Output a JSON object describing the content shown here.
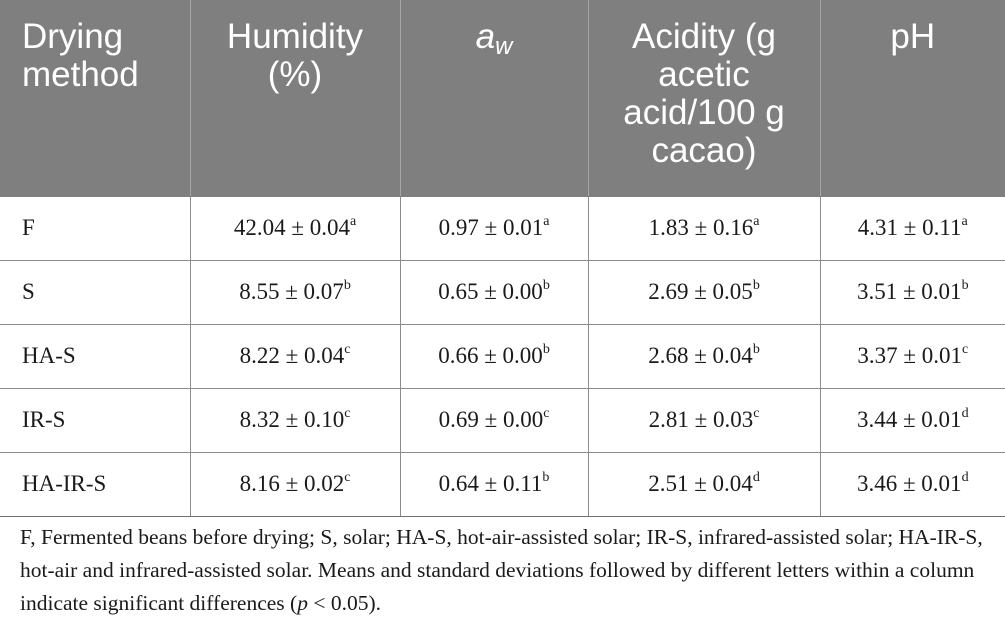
{
  "table": {
    "headers": {
      "drying_method": "Drying method",
      "humidity": "Humidity (%)",
      "aw_symbol": "a",
      "aw_subscript": "w",
      "acidity": "Acidity (g acetic acid/100 g cacao)",
      "ph": "pH"
    },
    "rows": [
      {
        "method": "F",
        "humidity": "42.04 ± 0.04",
        "humidity_sup": "a",
        "aw": "0.97 ± 0.01",
        "aw_sup": "a",
        "acidity": "1.83 ± 0.16",
        "acidity_sup": "a",
        "ph": "4.31 ± 0.11",
        "ph_sup": "a"
      },
      {
        "method": "S",
        "humidity": "8.55 ± 0.07",
        "humidity_sup": "b",
        "aw": "0.65 ± 0.00",
        "aw_sup": "b",
        "acidity": "2.69 ± 0.05",
        "acidity_sup": "b",
        "ph": "3.51 ± 0.01",
        "ph_sup": "b"
      },
      {
        "method": "HA-S",
        "humidity": "8.22 ± 0.04",
        "humidity_sup": "c",
        "aw": "0.66 ± 0.00",
        "aw_sup": "b",
        "acidity": "2.68 ± 0.04",
        "acidity_sup": "b",
        "ph": "3.37 ± 0.01",
        "ph_sup": "c"
      },
      {
        "method": "IR-S",
        "humidity": "8.32 ± 0.10",
        "humidity_sup": "c",
        "aw": "0.69 ± 0.00",
        "aw_sup": "c",
        "acidity": "2.81 ± 0.03",
        "acidity_sup": "c",
        "ph": "3.44 ± 0.01",
        "ph_sup": "d"
      },
      {
        "method": "HA-IR-S",
        "humidity": "8.16 ± 0.02",
        "humidity_sup": "c",
        "aw": "0.64 ± 0.11",
        "aw_sup": "b",
        "acidity": "2.51 ± 0.04",
        "acidity_sup": "d",
        "ph": "3.46 ± 0.01",
        "ph_sup": "d"
      }
    ]
  },
  "footnote": {
    "text_before_p": "F, Fermented beans before drying; S, solar; HA-S, hot-air-assisted solar; IR-S, infrared-assisted solar; HA-IR-S, hot-air and infrared-assisted solar. Means and standard deviations followed by different letters within a column indicate significant differences (",
    "p_symbol": "p",
    "text_after_p": " < 0.05)."
  },
  "colors": {
    "header_background": "#7f7f7f",
    "header_text": "#ffffff",
    "grid_lines": "#8c8c8c"
  }
}
